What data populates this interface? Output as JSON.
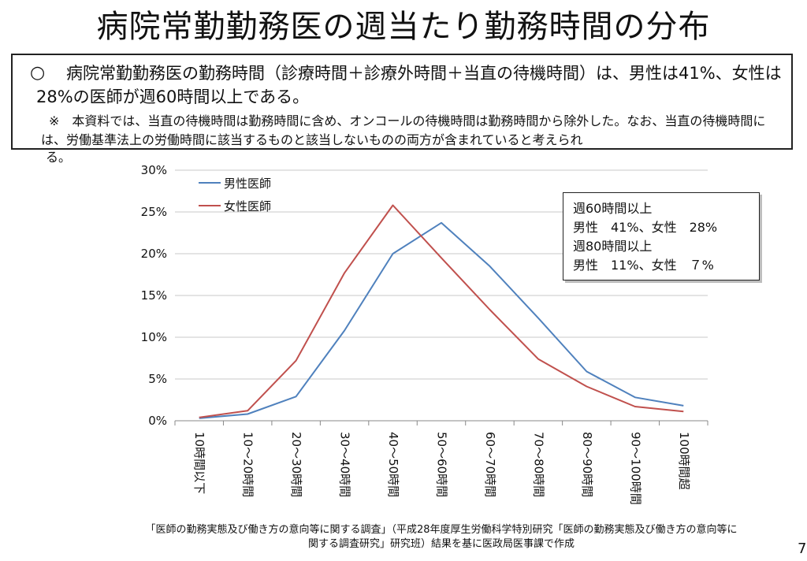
{
  "slide": {
    "title": "病院常勤勤務医の週当たり勤務時間の分布",
    "page_number": "7"
  },
  "summary": {
    "bullet": "○",
    "main": "病院常勤勤務医の勤務時間（診療時間＋診療外時間＋当直の待機時間）は、男性は41%、女性は28%の医師が週60時間以上である。",
    "note_prefix": "※",
    "note": "本資料では、当直の待機時間は勤務時間に含め、オンコールの待機時間は勤務時間から除外した。なお、当直の待機時間には、労働基準法上の労働時間に該当するものと該当しないものの両方が含まれていると考えられ",
    "note_overflow": "る。"
  },
  "stats_box": {
    "line1": "週60時間以上",
    "line2": "男性　41%、女性　28%",
    "line3": "週80時間以上",
    "line4": "男性　11%、女性　７%"
  },
  "source": "「医師の勤務実態及び働き方の意向等に関する調査」（平成28年度厚生労働科学特別研究「医師の勤務実態及び働き方の意向等に関する調査研究」研究班）結果を基に医政局医事課で作成",
  "chart_data": {
    "type": "line",
    "categories": [
      "10時間以下",
      "10～20時間",
      "20～30時間",
      "30～40時間",
      "40～50時間",
      "50～60時間",
      "60～70時間",
      "70～80時間",
      "80～90時間",
      "90～100時間",
      "100時間超"
    ],
    "series": [
      {
        "name": "男性医師",
        "color": "#4f81bd",
        "values": [
          0.3,
          0.8,
          2.9,
          10.8,
          20.0,
          23.7,
          18.5,
          12.3,
          5.9,
          2.8,
          1.8
        ]
      },
      {
        "name": "女性医師",
        "color": "#c0504d",
        "values": [
          0.4,
          1.2,
          7.2,
          17.7,
          25.8,
          19.5,
          13.3,
          7.4,
          4.1,
          1.7,
          1.1
        ]
      }
    ],
    "ylim": [
      0,
      30
    ],
    "y_ticks": [
      "0%",
      "5%",
      "10%",
      "15%",
      "20%",
      "25%",
      "30%"
    ],
    "grid": true,
    "legend_position": "top-left"
  }
}
